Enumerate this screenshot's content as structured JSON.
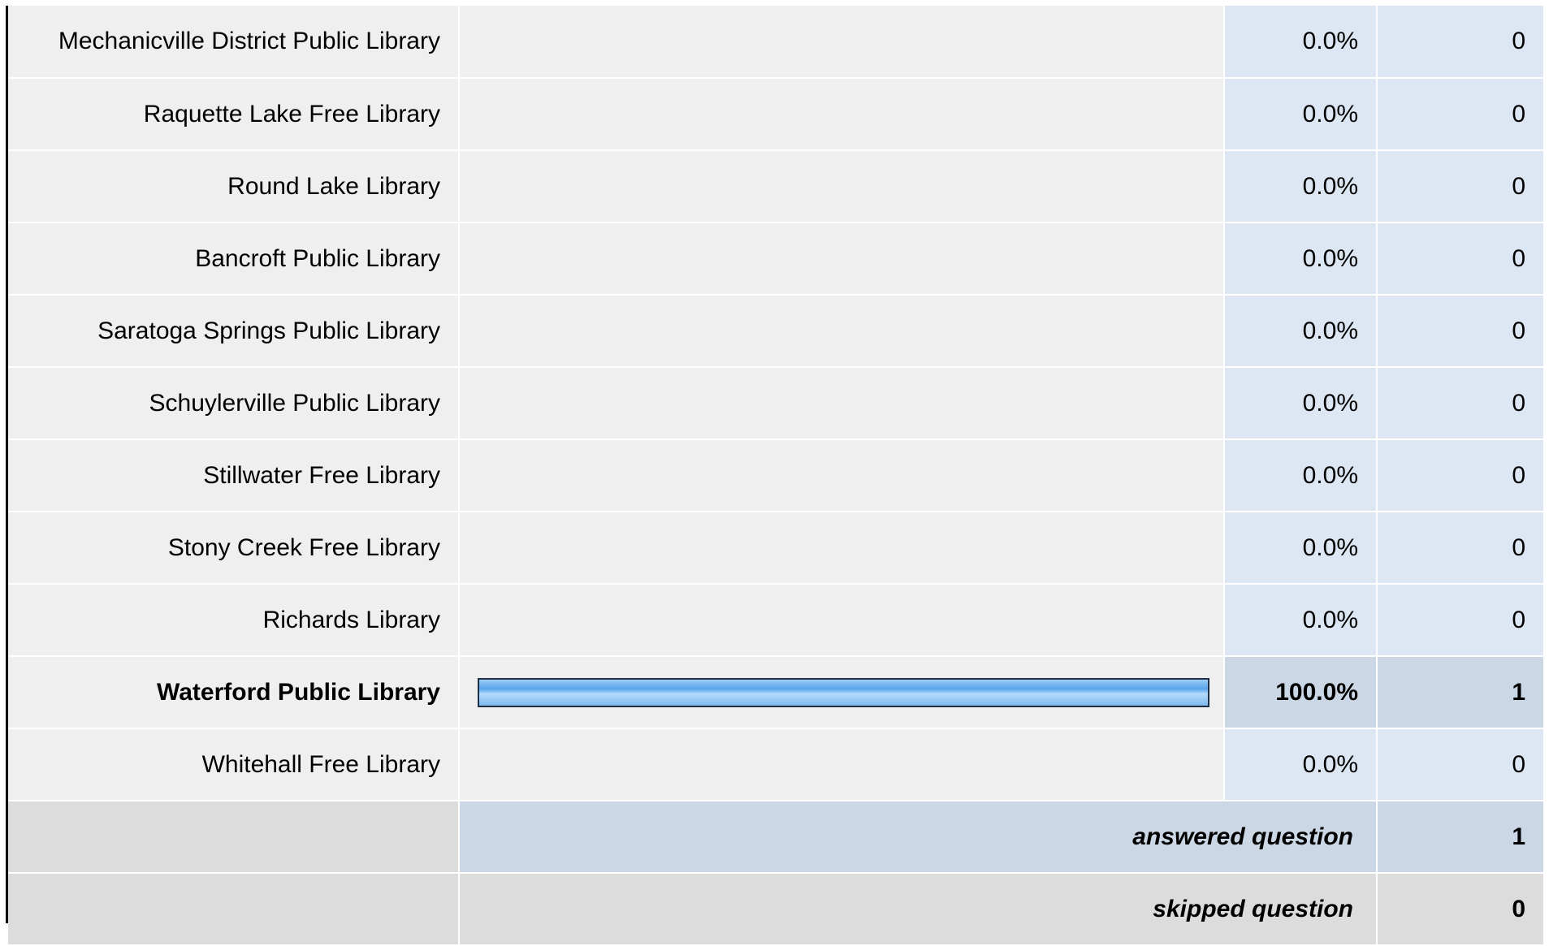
{
  "chart_data": {
    "type": "bar",
    "orientation": "horizontal",
    "categories": [
      "Mechanicville District Public Library",
      "Raquette Lake Free Library",
      "Round Lake Library",
      "Bancroft Public Library",
      "Saratoga Springs Public Library",
      "Schuylerville Public Library",
      "Stillwater Free Library",
      "Stony Creek Free Library",
      "Richards Library",
      "Waterford Public Library",
      "Whitehall Free Library"
    ],
    "percent_labels": [
      "0.0%",
      "0.0%",
      "0.0%",
      "0.0%",
      "0.0%",
      "0.0%",
      "0.0%",
      "0.0%",
      "0.0%",
      "100.0%",
      "0.0%"
    ],
    "percent_values": [
      0,
      0,
      0,
      0,
      0,
      0,
      0,
      0,
      0,
      100,
      0
    ],
    "counts": [
      "0",
      "0",
      "0",
      "0",
      "0",
      "0",
      "0",
      "0",
      "0",
      "1",
      "0"
    ],
    "xlim": [
      0,
      100
    ],
    "highlighted": "Waterford Public Library",
    "bar_color": "#5aa4ea"
  },
  "footer": {
    "answered_label": "answered question",
    "answered_count": "1",
    "skipped_label": "skipped question",
    "skipped_count": "0"
  },
  "colors": {
    "label_bg": "#efefef",
    "value_bg": "#dde7f3",
    "highlight_bg": "#cbd7e5",
    "footer_bg": "#dcdcdc"
  }
}
